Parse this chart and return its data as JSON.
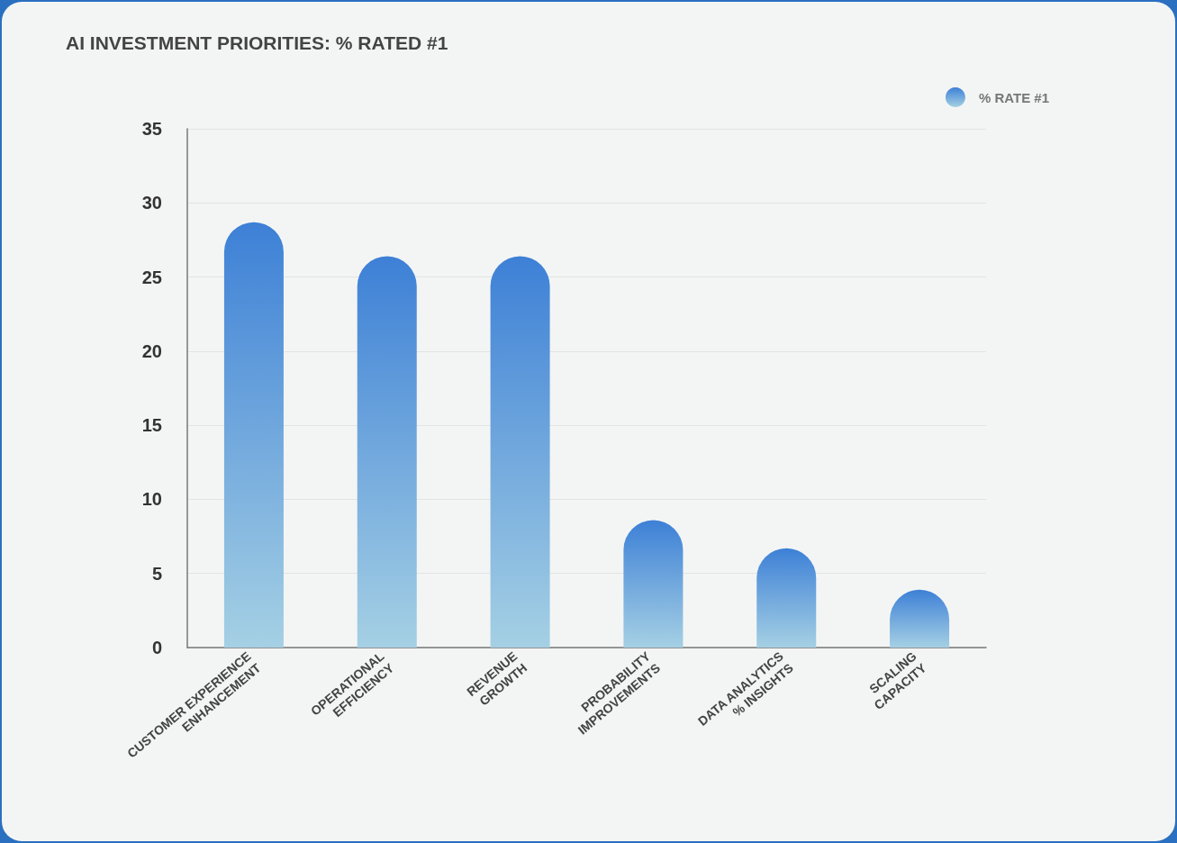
{
  "chart_data": {
    "type": "bar",
    "title": "AI INVESTMENT PRIORITIES: % RATED #1",
    "categories": [
      "CUSTOMER EXPERIENCE ENHANCEMENT",
      "OPERATIONAL EFFICIENCY",
      "REVENUE GROWTH",
      "PROBABILITY IMPROVEMENTS",
      "DATA ANALYTICS % INSIGHTS",
      "SCALING CAPACITY"
    ],
    "series": [
      {
        "name": "% RATE #1",
        "color": "#3d80d6",
        "values": [
          28.7,
          26.4,
          26.4,
          8.6,
          6.7,
          3.9
        ]
      }
    ],
    "ylim": [
      0,
      35
    ],
    "yticks": [
      0,
      5,
      10,
      15,
      20,
      25,
      30,
      35
    ],
    "grid": "y",
    "legend": "top right"
  }
}
